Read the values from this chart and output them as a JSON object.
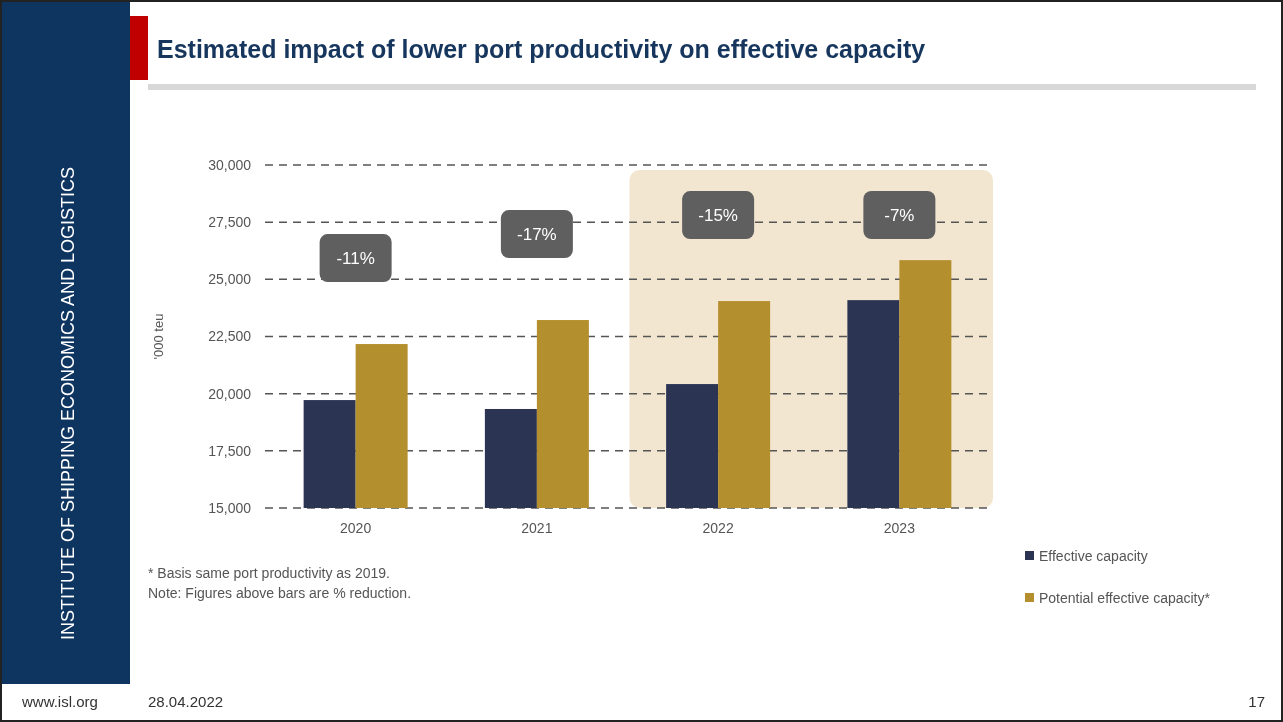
{
  "chart_data": {
    "type": "bar",
    "title": "Estimated impact of lower port productivity on effective capacity",
    "ylabel": "'000 teu",
    "categories": [
      "2020",
      "2021",
      "2022",
      "2023"
    ],
    "series": [
      {
        "name": "Effective capacity",
        "color": "#2b3452",
        "values": [
          19720,
          19330,
          20420,
          24090
        ]
      },
      {
        "name": "Potential effective capacity*",
        "color": "#b48f2e",
        "values": [
          22170,
          23220,
          24050,
          25840
        ]
      }
    ],
    "ylim": [
      15000,
      30000
    ],
    "yticks": [
      {
        "value": 15000,
        "label": "15,000"
      },
      {
        "value": 17500,
        "label": "17,500"
      },
      {
        "value": 20000,
        "label": "20,000"
      },
      {
        "value": 22500,
        "label": "22,500"
      },
      {
        "value": 25000,
        "label": "25,000"
      },
      {
        "value": 27500,
        "label": "27,500"
      },
      {
        "value": 30000,
        "label": "30,000"
      }
    ],
    "grid": "y",
    "legend": "bottom right",
    "bands": [
      {
        "axis": "x",
        "from": "2022",
        "to": "2023",
        "color": "#f2e6d0"
      }
    ],
    "annotations": [
      "-11%",
      "-17%",
      "-15%",
      "-7%",
      "* Basis same port productivity as 2019.",
      "Note: Figures above bars are % reduction.",
      "INSTITUTE OF SHIPPING ECONOMICS AND LOGISTICS",
      "www.isl.org",
      "28.04.2022",
      "17"
    ]
  }
}
